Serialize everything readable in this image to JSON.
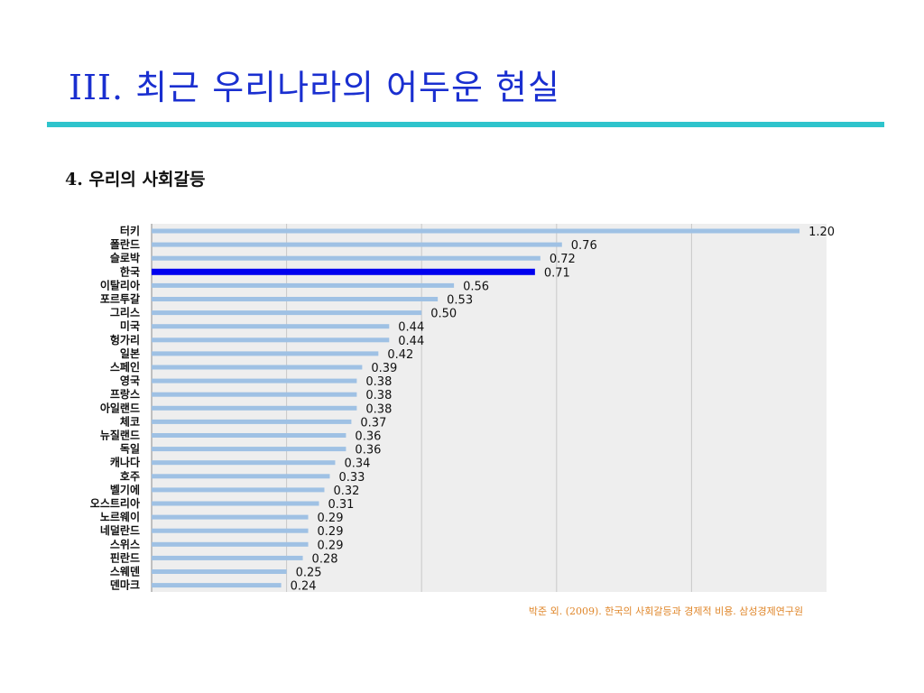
{
  "slide": {
    "title": "III. 최근 우리나라의 어두운 현실",
    "subtitle": "4. 우리의 사회갈등",
    "citation": "박준 외. (2009). 한국의 사회갈등과 경제적 비용. 삼성경제연구원"
  },
  "colors": {
    "title": "#1a2fd0",
    "rule": "#2ec4cc",
    "bar": "#9fc1e4",
    "highlight_bar": "#0000ee",
    "highlight_label": "#0000ee",
    "plot_bg": "#eeeeee",
    "citation": "#e0872b"
  },
  "chart_data": {
    "type": "bar",
    "orientation": "horizontal",
    "title": "",
    "xlabel": "",
    "ylabel": "",
    "xlim": [
      0,
      1.25
    ],
    "grid": true,
    "highlight": "한국",
    "categories": [
      "터키",
      "폴란드",
      "슬로박",
      "한국",
      "이탈리아",
      "포르투갈",
      "그리스",
      "미국",
      "헝가리",
      "일본",
      "스페인",
      "영국",
      "프랑스",
      "아일랜드",
      "체코",
      "뉴질랜드",
      "독일",
      "캐나다",
      "호주",
      "벨기에",
      "오스트리아",
      "노르웨이",
      "네덜란드",
      "스위스",
      "핀란드",
      "스웨덴",
      "덴마크"
    ],
    "values": [
      1.2,
      0.76,
      0.72,
      0.71,
      0.56,
      0.53,
      0.5,
      0.44,
      0.44,
      0.42,
      0.39,
      0.38,
      0.38,
      0.38,
      0.37,
      0.36,
      0.36,
      0.34,
      0.33,
      0.32,
      0.31,
      0.29,
      0.29,
      0.29,
      0.28,
      0.25,
      0.24
    ],
    "value_labels": [
      "1.20",
      "0.76",
      "0.72",
      "0.71",
      "0.56",
      "0.53",
      "0.50",
      "0.44",
      "0.44",
      "0.42",
      "0.39",
      "0.38",
      "0.38",
      "0.38",
      "0.37",
      "0.36",
      "0.36",
      "0.34",
      "0.33",
      "0.32",
      "0.31",
      "0.29",
      "0.29",
      "0.29",
      "0.28",
      "0.25",
      "0.24"
    ]
  }
}
